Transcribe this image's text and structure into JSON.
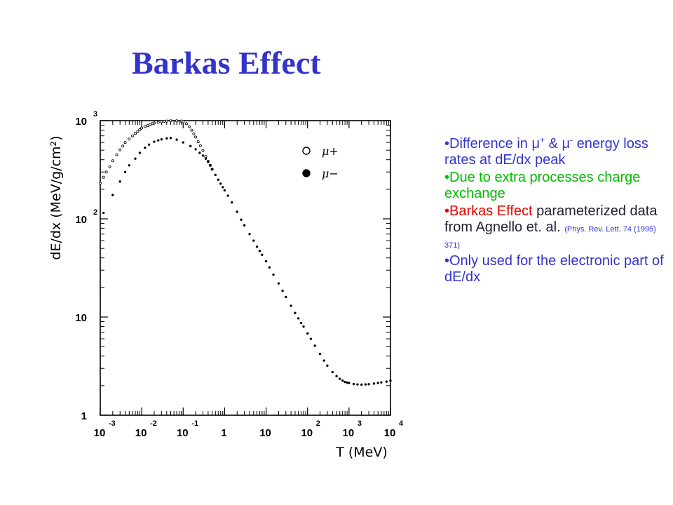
{
  "title": "Barkas Effect",
  "bullets": [
    {
      "parts": [
        {
          "t": "•Difference in ",
          "c": "blue"
        },
        {
          "t": "μ",
          "c": "blue"
        },
        {
          "t": "+",
          "c": "blue",
          "sup": true
        },
        {
          "t": " & ",
          "c": "blue"
        },
        {
          "t": "μ",
          "c": "blue"
        },
        {
          "t": "-",
          "c": "blue",
          "sup": true
        },
        {
          "t": " energy loss rates at dE/dx peak",
          "c": "blue"
        }
      ]
    },
    {
      "parts": [
        {
          "t": "•Due to extra processes ",
          "c": "green"
        },
        {
          "t": "charge exchange",
          "c": "green"
        }
      ]
    },
    {
      "parts": [
        {
          "t": "•Barkas Effect",
          "c": "red"
        },
        {
          "t": " parameterized data from Agnello et. al. ",
          "c": "dark"
        },
        {
          "t": "(Phys. Rev. Lett. 74 (1995) 371)",
          "c": "blue",
          "small": true
        }
      ]
    },
    {
      "parts": [
        {
          "t": "•Only used for the electronic part of dE/dx",
          "c": "blue"
        }
      ]
    }
  ],
  "chart_data": {
    "type": "scatter",
    "xlabel": "T (MeV)",
    "ylabel": "dE/dx (MeV/g/cm²)",
    "xscale": "log",
    "yscale": "log",
    "xlim": [
      0.001,
      10000
    ],
    "ylim": [
      1,
      1000
    ],
    "x_tick_labels": [
      {
        "base": "10",
        "exp": "-3"
      },
      {
        "base": "10",
        "exp": "-2"
      },
      {
        "base": "10",
        "exp": "-1"
      },
      {
        "base": "1",
        "exp": ""
      },
      {
        "base": "10",
        "exp": ""
      },
      {
        "base": "10",
        "exp": "2"
      },
      {
        "base": "10",
        "exp": "3"
      },
      {
        "base": "10",
        "exp": "4"
      }
    ],
    "y_tick_labels": [
      {
        "base": "1",
        "exp": ""
      },
      {
        "base": "10",
        "exp": ""
      },
      {
        "base": "10",
        "exp": "2"
      },
      {
        "base": "10",
        "exp": "3"
      }
    ],
    "legend": {
      "placement": "top-right",
      "entries": [
        {
          "name": "μ+",
          "marker": "open-circle"
        },
        {
          "name": "μ−",
          "marker": "filled-circle"
        }
      ]
    },
    "series": [
      {
        "name": "μ+",
        "marker": "open-circle",
        "points": [
          [
            0.001,
            230
          ],
          [
            0.0012,
            265
          ],
          [
            0.0014,
            300
          ],
          [
            0.0017,
            340
          ],
          [
            0.002,
            390
          ],
          [
            0.0025,
            450
          ],
          [
            0.003,
            505
          ],
          [
            0.0035,
            550
          ],
          [
            0.004,
            600
          ],
          [
            0.005,
            650
          ],
          [
            0.006,
            700
          ],
          [
            0.007,
            740
          ],
          [
            0.008,
            775
          ],
          [
            0.009,
            810
          ],
          [
            0.01,
            840
          ],
          [
            0.012,
            870
          ],
          [
            0.014,
            890
          ],
          [
            0.016,
            910
          ],
          [
            0.018,
            930
          ],
          [
            0.02,
            945
          ],
          [
            0.025,
            960
          ],
          [
            0.03,
            975
          ],
          [
            0.035,
            985
          ],
          [
            0.04,
            990
          ],
          [
            0.05,
            995
          ],
          [
            0.07,
            995
          ],
          [
            0.09,
            990
          ],
          [
            0.1,
            975
          ],
          [
            0.12,
            930
          ],
          [
            0.14,
            870
          ],
          [
            0.16,
            800
          ],
          [
            0.18,
            735
          ],
          [
            0.2,
            680
          ],
          [
            0.23,
            610
          ],
          [
            0.26,
            555
          ],
          [
            0.3,
            495
          ],
          [
            0.35,
            430
          ],
          [
            0.4,
            385
          ],
          [
            0.45,
            350
          ],
          [
            0.5,
            320
          ]
        ]
      },
      {
        "name": "μ−",
        "marker": "filled-circle",
        "points": [
          [
            0.0012,
            115
          ],
          [
            0.002,
            175
          ],
          [
            0.003,
            240
          ],
          [
            0.004,
            300
          ],
          [
            0.005,
            350
          ],
          [
            0.007,
            410
          ],
          [
            0.009,
            470
          ],
          [
            0.012,
            530
          ],
          [
            0.015,
            570
          ],
          [
            0.02,
            610
          ],
          [
            0.025,
            630
          ],
          [
            0.03,
            645
          ],
          [
            0.04,
            660
          ],
          [
            0.05,
            665
          ],
          [
            0.07,
            640
          ],
          [
            0.1,
            600
          ],
          [
            0.15,
            550
          ],
          [
            0.2,
            510
          ],
          [
            0.25,
            470
          ],
          [
            0.3,
            440
          ],
          [
            0.35,
            410
          ],
          [
            0.4,
            380
          ],
          [
            0.45,
            350
          ],
          [
            0.5,
            320
          ],
          [
            0.6,
            280
          ],
          [
            0.7,
            250
          ],
          [
            0.8,
            228
          ],
          [
            0.9,
            210
          ],
          [
            1,
            195
          ],
          [
            1.2,
            172
          ],
          [
            1.5,
            147
          ],
          [
            2,
            118
          ],
          [
            2.5,
            98
          ],
          [
            3,
            86
          ],
          [
            4,
            70
          ],
          [
            5,
            60
          ],
          [
            6,
            52
          ],
          [
            7,
            47
          ],
          [
            8,
            43
          ],
          [
            10,
            37
          ],
          [
            12,
            32
          ],
          [
            15,
            27
          ],
          [
            20,
            22
          ],
          [
            25,
            18.5
          ],
          [
            30,
            16
          ],
          [
            40,
            13
          ],
          [
            50,
            11
          ],
          [
            60,
            9.7
          ],
          [
            70,
            8.7
          ],
          [
            80,
            8
          ],
          [
            100,
            6.8
          ],
          [
            120,
            6
          ],
          [
            150,
            5.1
          ],
          [
            200,
            4.2
          ],
          [
            250,
            3.6
          ],
          [
            300,
            3.2
          ],
          [
            400,
            2.75
          ],
          [
            500,
            2.5
          ],
          [
            600,
            2.35
          ],
          [
            700,
            2.25
          ],
          [
            800,
            2.18
          ],
          [
            900,
            2.15
          ],
          [
            1000,
            2.13
          ],
          [
            1300,
            2.08
          ],
          [
            1600,
            2.06
          ],
          [
            2000,
            2.05
          ],
          [
            2500,
            2.06
          ],
          [
            3000,
            2.07
          ],
          [
            4000,
            2.1
          ],
          [
            5000,
            2.13
          ],
          [
            6000,
            2.16
          ],
          [
            8000,
            2.2
          ],
          [
            10000,
            2.25
          ]
        ]
      }
    ]
  }
}
